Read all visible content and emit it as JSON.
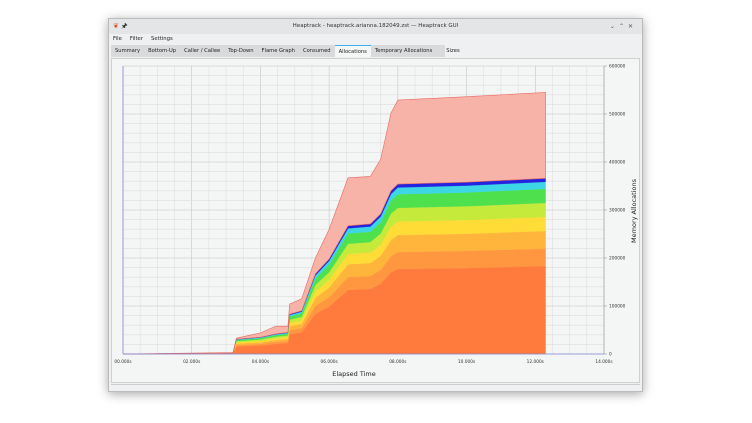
{
  "window": {
    "title": "Heaptrack - heaptrack.arianna.182049.zst — Heaptrack GUI",
    "app_icon": "heaptrack-icon",
    "pin_icon": "pin-icon",
    "controls": [
      "minimize",
      "maximize",
      "close"
    ]
  },
  "menu": [
    "File",
    "Filter",
    "Settings"
  ],
  "tabs": [
    {
      "label": "Summary"
    },
    {
      "label": "Bottom-Up"
    },
    {
      "label": "Caller / Callee"
    },
    {
      "label": "Top-Down"
    },
    {
      "label": "Flame Graph"
    },
    {
      "label": "Consumed"
    },
    {
      "label": "Allocations",
      "active": true
    },
    {
      "label": "Temporary Allocations"
    },
    {
      "label": "Sizes"
    }
  ],
  "chart_data": {
    "type": "area",
    "stacked": true,
    "xlabel": "Elapsed Time",
    "ylabel": "Memory Allocations",
    "xlim": [
      0,
      14
    ],
    "ylim": [
      0,
      600000
    ],
    "x_ticks": [
      "00.000s",
      "02.000s",
      "04.000s",
      "06.000s",
      "08.000s",
      "10.000s",
      "12.000s",
      "14.000s"
    ],
    "y_ticks": [
      "0",
      "100000",
      "200000",
      "300000",
      "400000",
      "500000",
      "600000"
    ],
    "y_axis_side": "right",
    "grid": true,
    "x": [
      0,
      3.2,
      3.3,
      4.0,
      4.45,
      4.8,
      4.85,
      5.2,
      5.6,
      6.0,
      6.55,
      7.2,
      7.5,
      7.8,
      8.0,
      10.0,
      12.3
    ],
    "series": [
      {
        "color": "#ff7a3d",
        "values": [
          0,
          1000,
          15500,
          17500,
          21000,
          22500,
          41500,
          45000,
          83500,
          99000,
          133500,
          135500,
          146000,
          170000,
          177000,
          179000,
          183000
        ]
      },
      {
        "color": "#ff9640",
        "values": [
          0,
          200,
          3100,
          3500,
          4200,
          4500,
          8300,
          9000,
          16700,
          19800,
          26700,
          27100,
          29200,
          34000,
          35400,
          35800,
          36600
        ]
      },
      {
        "color": "#ffb53c",
        "values": [
          0,
          200,
          3100,
          3500,
          4200,
          4500,
          8300,
          9000,
          16700,
          19800,
          26700,
          27100,
          29200,
          34000,
          35400,
          35800,
          36600
        ]
      },
      {
        "color": "#ffdc36",
        "values": [
          0,
          160,
          2480,
          2800,
          3360,
          3600,
          6640,
          7200,
          13360,
          15840,
          21360,
          21680,
          23360,
          27200,
          28320,
          28640,
          29280
        ]
      },
      {
        "color": "#c6ea3c",
        "values": [
          0,
          160,
          2480,
          2800,
          3360,
          3600,
          6640,
          7200,
          13360,
          15840,
          21360,
          21680,
          23360,
          27200,
          28320,
          28640,
          29280
        ]
      },
      {
        "color": "#4fe04d",
        "values": [
          0,
          160,
          2480,
          2800,
          3360,
          3600,
          6640,
          7200,
          13360,
          15840,
          21360,
          21680,
          23360,
          27200,
          28320,
          28640,
          29280
        ]
      },
      {
        "color": "#3cd6e4",
        "values": [
          0,
          80,
          1240,
          1400,
          1680,
          1800,
          3320,
          3600,
          6680,
          7920,
          10680,
          10840,
          11680,
          13600,
          14160,
          14320,
          14640
        ]
      },
      {
        "color": "#2323e0",
        "values": [
          0,
          40,
          620,
          700,
          840,
          900,
          1660,
          1800,
          3340,
          3960,
          5340,
          5420,
          5840,
          6800,
          7080,
          7160,
          7320
        ]
      },
      {
        "color": "#f7b3a8",
        "values": [
          0,
          1000,
          2000,
          9000,
          16000,
          13000,
          21000,
          25000,
          33000,
          62000,
          100000,
          99000,
          114000,
          162000,
          175000,
          178000,
          179000
        ]
      }
    ]
  }
}
